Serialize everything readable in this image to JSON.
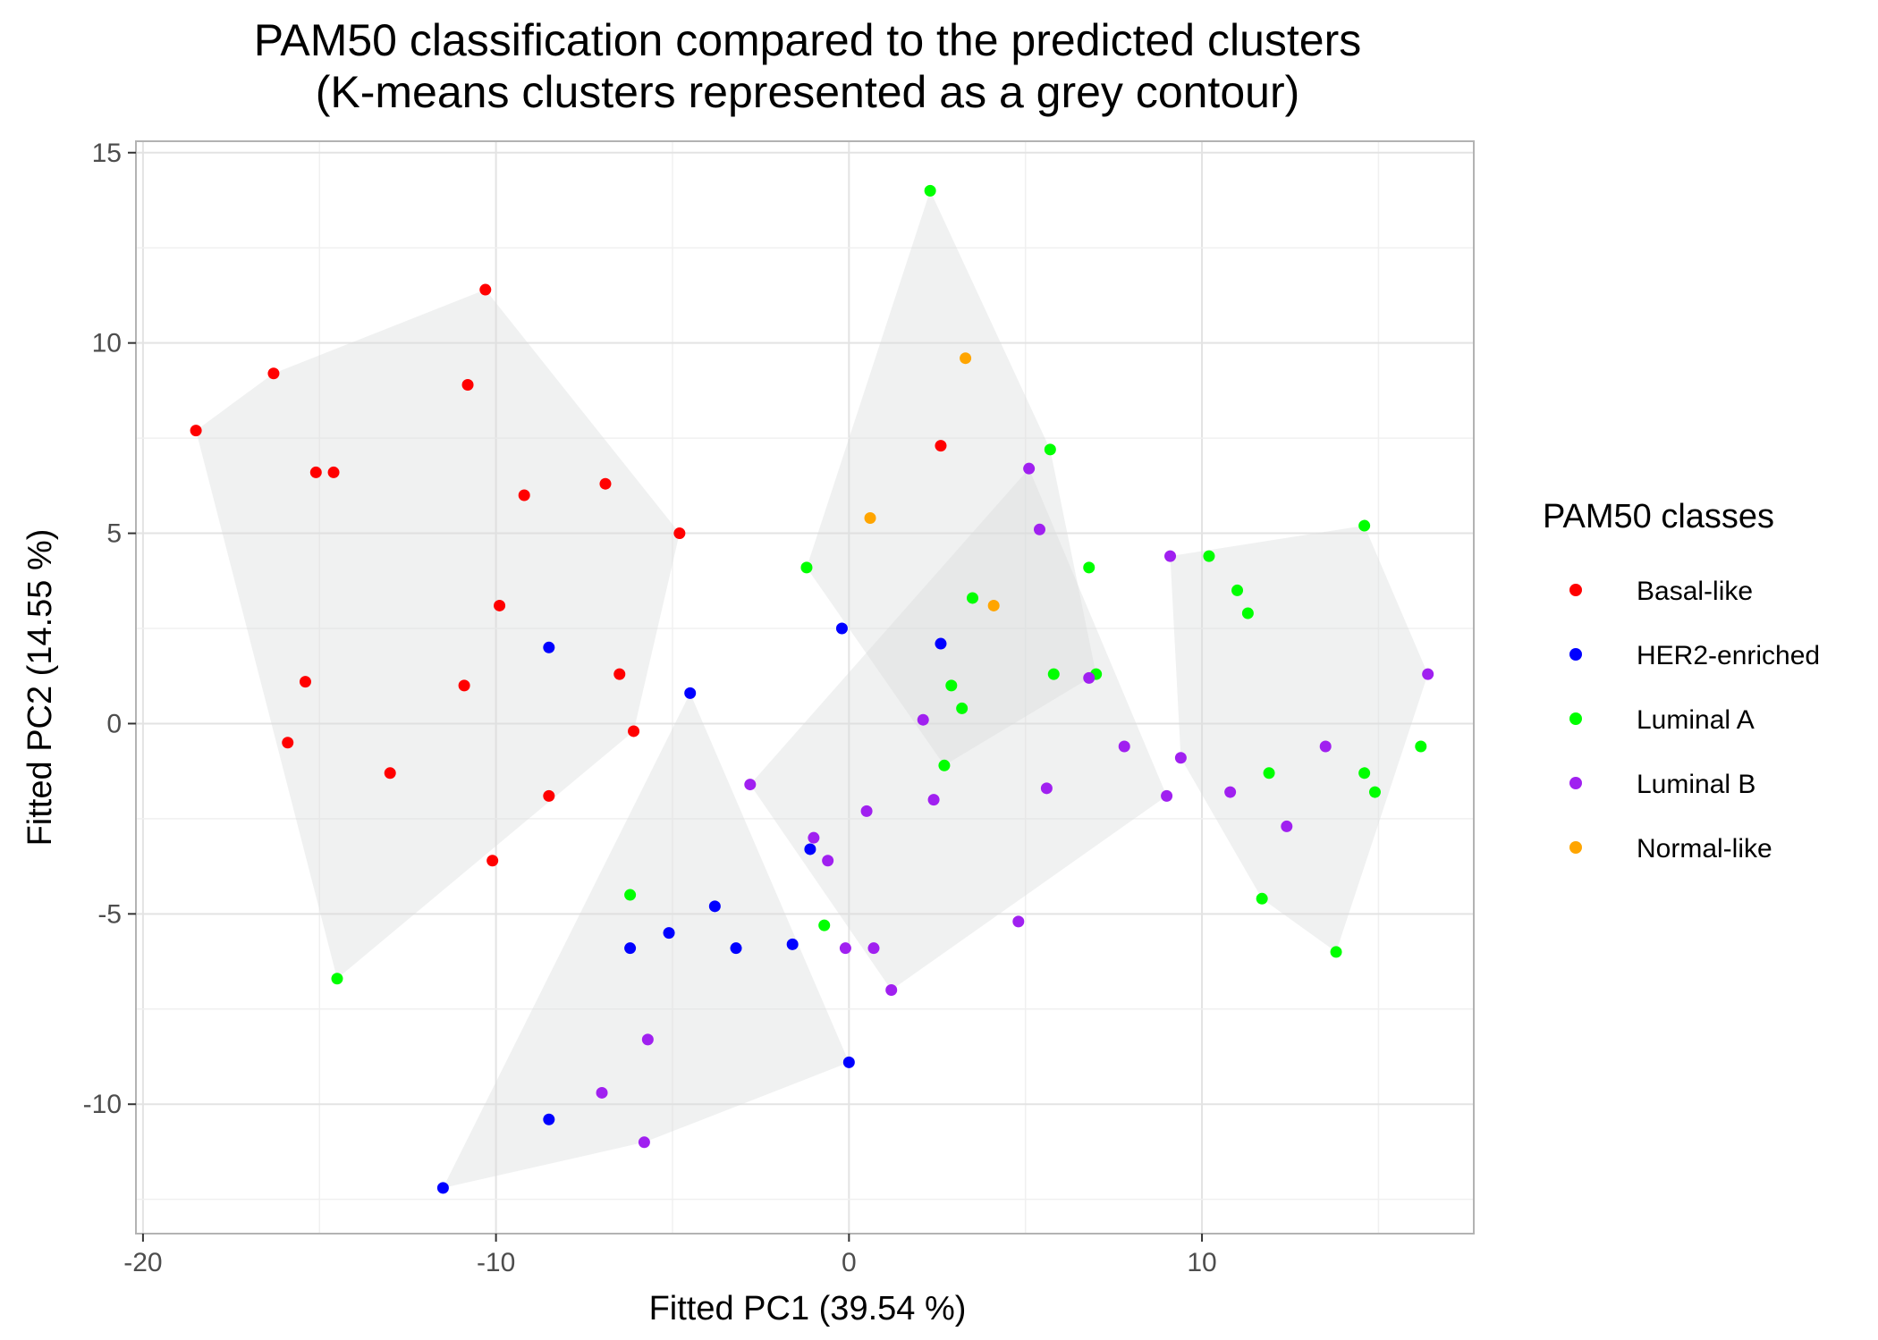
{
  "chart_data": {
    "type": "scatter",
    "title": "PAM50 classification compared to the predicted clusters",
    "subtitle": "(K-means clusters represented as a grey contour)",
    "xlabel": "Fitted PC1 (39.54 %)",
    "ylabel": "Fitted PC2 (14.55 %)",
    "xlim": [
      -20.2,
      17.7
    ],
    "ylim": [
      -13.4,
      15.3
    ],
    "x_ticks": [
      -20,
      -10,
      0,
      10
    ],
    "y_ticks": [
      15,
      10,
      5,
      0,
      -5,
      -10
    ],
    "x_tick_labels": [
      "-20",
      "-10",
      "0",
      "10"
    ],
    "y_tick_labels": [
      "15",
      "10",
      "5",
      "0",
      "-5",
      "-10"
    ],
    "grid": true,
    "legend_title": "PAM50 classes",
    "legend_position": "right",
    "cluster_fill": "#d9dcdb",
    "series": [
      {
        "name": "Basal-like",
        "color": "#ff0000",
        "points": [
          [
            -18.5,
            7.7
          ],
          [
            -16.3,
            9.2
          ],
          [
            -15.1,
            6.6
          ],
          [
            -14.6,
            6.6
          ],
          [
            -15.4,
            1.1
          ],
          [
            -15.9,
            -0.5
          ],
          [
            -13.0,
            -1.3
          ],
          [
            -10.8,
            8.9
          ],
          [
            -10.3,
            11.4
          ],
          [
            -9.2,
            6.0
          ],
          [
            -9.9,
            3.1
          ],
          [
            -10.9,
            1.0
          ],
          [
            -10.1,
            -3.6
          ],
          [
            -8.5,
            -1.9
          ],
          [
            -6.9,
            6.3
          ],
          [
            -6.5,
            1.3
          ],
          [
            -6.1,
            -0.2
          ],
          [
            -4.8,
            5.0
          ],
          [
            2.6,
            7.3
          ]
        ]
      },
      {
        "name": "HER2-enriched",
        "color": "#0000ff",
        "points": [
          [
            -8.5,
            2.0
          ],
          [
            -4.5,
            0.8
          ],
          [
            -0.2,
            2.5
          ],
          [
            2.6,
            2.1
          ],
          [
            -1.1,
            -3.3
          ],
          [
            -3.8,
            -4.8
          ],
          [
            -5.1,
            -5.5
          ],
          [
            -6.2,
            -5.9
          ],
          [
            -3.2,
            -5.9
          ],
          [
            -1.6,
            -5.8
          ],
          [
            0.0,
            -8.9
          ],
          [
            -8.5,
            -10.4
          ],
          [
            -11.5,
            -12.2
          ]
        ]
      },
      {
        "name": "Luminal A",
        "color": "#00ff00",
        "points": [
          [
            2.3,
            14.0
          ],
          [
            5.7,
            7.2
          ],
          [
            -1.2,
            4.1
          ],
          [
            6.8,
            4.1
          ],
          [
            3.5,
            3.3
          ],
          [
            5.8,
            1.3
          ],
          [
            7.0,
            1.3
          ],
          [
            2.9,
            1.0
          ],
          [
            3.2,
            0.4
          ],
          [
            2.7,
            -1.1
          ],
          [
            -0.7,
            -5.3
          ],
          [
            -6.2,
            -4.5
          ],
          [
            -14.5,
            -6.7
          ],
          [
            10.2,
            4.4
          ],
          [
            11.0,
            3.5
          ],
          [
            11.3,
            2.9
          ],
          [
            14.6,
            5.2
          ],
          [
            11.9,
            -1.3
          ],
          [
            14.6,
            -1.3
          ],
          [
            14.9,
            -1.8
          ],
          [
            16.2,
            -0.6
          ],
          [
            11.7,
            -4.6
          ],
          [
            13.8,
            -6.0
          ]
        ]
      },
      {
        "name": "Luminal B",
        "color": "#a020f0",
        "points": [
          [
            5.1,
            6.7
          ],
          [
            5.4,
            5.1
          ],
          [
            9.1,
            4.4
          ],
          [
            6.8,
            1.2
          ],
          [
            16.4,
            1.3
          ],
          [
            2.1,
            0.1
          ],
          [
            7.8,
            -0.6
          ],
          [
            9.4,
            -0.9
          ],
          [
            13.5,
            -0.6
          ],
          [
            -2.8,
            -1.6
          ],
          [
            0.5,
            -2.3
          ],
          [
            2.4,
            -2.0
          ],
          [
            5.6,
            -1.7
          ],
          [
            9.0,
            -1.9
          ],
          [
            10.8,
            -1.8
          ],
          [
            12.4,
            -2.7
          ],
          [
            -1.0,
            -3.0
          ],
          [
            -0.6,
            -3.6
          ],
          [
            4.8,
            -5.2
          ],
          [
            -0.1,
            -5.9
          ],
          [
            0.7,
            -5.9
          ],
          [
            1.2,
            -7.0
          ],
          [
            -5.7,
            -8.3
          ],
          [
            -7.0,
            -9.7
          ],
          [
            -5.8,
            -11.0
          ]
        ]
      },
      {
        "name": "Normal-like",
        "color": "#ffa500",
        "points": [
          [
            3.3,
            9.6
          ],
          [
            0.6,
            5.4
          ],
          [
            4.1,
            3.1
          ]
        ]
      }
    ],
    "cluster_hulls": [
      [
        [
          -18.5,
          7.7
        ],
        [
          -16.3,
          9.2
        ],
        [
          -10.3,
          11.4
        ],
        [
          -4.8,
          5.0
        ],
        [
          -6.1,
          -0.2
        ],
        [
          -14.5,
          -6.7
        ]
      ],
      [
        [
          2.3,
          14.0
        ],
        [
          5.7,
          7.2
        ],
        [
          7.0,
          1.3
        ],
        [
          2.7,
          -1.1
        ],
        [
          -1.2,
          4.1
        ]
      ],
      [
        [
          -4.5,
          0.8
        ],
        [
          0.0,
          -8.9
        ],
        [
          -5.8,
          -11.0
        ],
        [
          -11.5,
          -12.2
        ]
      ],
      [
        [
          -2.8,
          -1.6
        ],
        [
          5.1,
          6.7
        ],
        [
          9.0,
          -1.9
        ],
        [
          1.2,
          -7.0
        ]
      ],
      [
        [
          9.1,
          4.4
        ],
        [
          14.6,
          5.2
        ],
        [
          16.4,
          1.3
        ],
        [
          13.8,
          -6.0
        ],
        [
          11.7,
          -4.6
        ],
        [
          9.4,
          -0.9
        ]
      ]
    ]
  }
}
